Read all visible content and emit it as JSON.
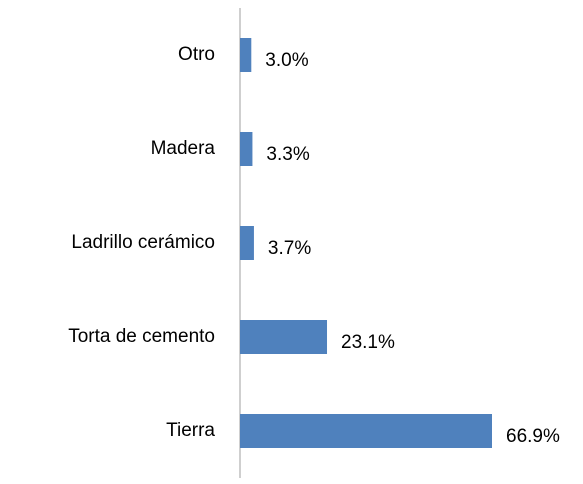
{
  "chart_data": {
    "type": "bar",
    "orientation": "horizontal",
    "categories": [
      "Otro",
      "Madera",
      "Ladrillo cerámico",
      "Torta de cemento",
      "Tierra"
    ],
    "values": [
      3.0,
      3.3,
      3.7,
      23.1,
      66.9
    ],
    "value_labels": [
      "3.0%",
      "3.3%",
      "3.7%",
      "23.1%",
      "66.9%"
    ],
    "color": "#4f81bd"
  }
}
